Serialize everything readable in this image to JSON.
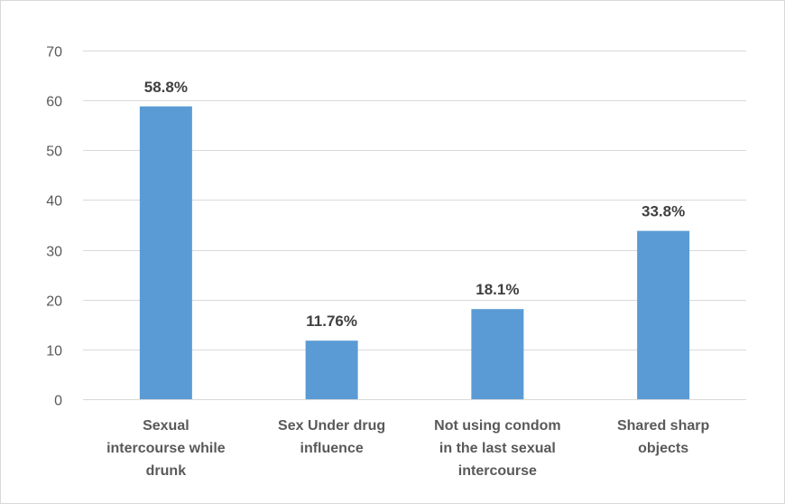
{
  "chart_data": {
    "type": "bar",
    "title": "",
    "xlabel": "",
    "ylabel": "",
    "categories": [
      [
        "Sexual",
        "intercourse while",
        "drunk"
      ],
      [
        "Sex Under drug",
        "influence"
      ],
      [
        "Not using condom",
        "in the last sexual",
        "intercourse"
      ],
      [
        "Shared sharp",
        "objects"
      ]
    ],
    "values": [
      58.8,
      11.76,
      18.1,
      33.8
    ],
    "data_labels": [
      "58.8%",
      "11.76%",
      "18.1%",
      "33.8%"
    ],
    "ylim": [
      0,
      70
    ],
    "yticks": [
      0,
      10,
      20,
      30,
      40,
      50,
      60,
      70
    ],
    "grid": true,
    "legend": "none",
    "bar_color": "#5b9bd5",
    "grid_color": "#d9d9d9"
  }
}
